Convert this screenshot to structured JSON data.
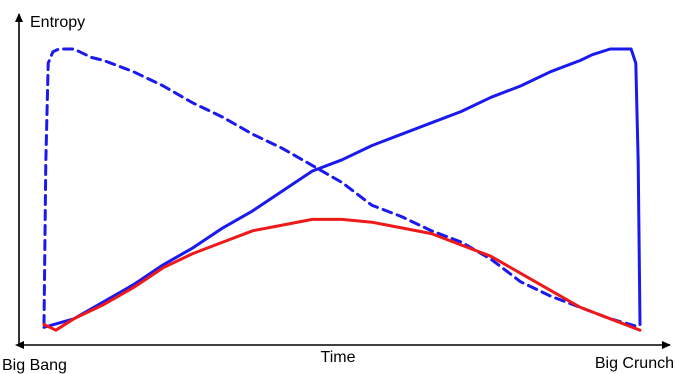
{
  "chart_data": {
    "type": "line",
    "ylabel": "Entropy",
    "xlabel": "Time",
    "x_start_label": "Big Bang",
    "x_end_label": "Big Crunch",
    "xlim": [
      0,
      1
    ],
    "ylim": [
      0,
      1
    ],
    "grid": false,
    "legend": "none",
    "x_ticks": false,
    "y_ticks": false,
    "series": [
      {
        "color": "#1a1aee",
        "style": "solid",
        "x": [
          0.0,
          0.05,
          0.1,
          0.15,
          0.2,
          0.25,
          0.3,
          0.35,
          0.4,
          0.45,
          0.5,
          0.55,
          0.6,
          0.65,
          0.7,
          0.75,
          0.8,
          0.85,
          0.9,
          0.92,
          0.95,
          0.97,
          0.985,
          0.993,
          0.997,
          1.0
        ],
        "y": [
          0.02,
          0.05,
          0.11,
          0.17,
          0.24,
          0.3,
          0.37,
          0.43,
          0.5,
          0.57,
          0.61,
          0.66,
          0.7,
          0.74,
          0.78,
          0.83,
          0.87,
          0.92,
          0.96,
          0.98,
          1.0,
          1.0,
          1.0,
          0.95,
          0.6,
          0.03
        ]
      },
      {
        "color": "#1a1aee",
        "style": "dashed",
        "x": [
          0.0,
          0.003,
          0.007,
          0.015,
          0.025,
          0.05,
          0.08,
          0.1,
          0.15,
          0.2,
          0.25,
          0.3,
          0.35,
          0.4,
          0.45,
          0.5,
          0.55,
          0.6,
          0.65,
          0.7,
          0.75,
          0.8,
          0.85,
          0.9,
          0.95,
          1.0
        ],
        "y": [
          0.03,
          0.6,
          0.95,
          0.99,
          1.0,
          1.0,
          0.97,
          0.96,
          0.92,
          0.87,
          0.81,
          0.76,
          0.7,
          0.65,
          0.59,
          0.53,
          0.45,
          0.41,
          0.36,
          0.32,
          0.26,
          0.18,
          0.13,
          0.09,
          0.05,
          0.02
        ]
      },
      {
        "color": "#ee1a1a",
        "style": "solid",
        "x": [
          0.0,
          0.02,
          0.05,
          0.1,
          0.15,
          0.2,
          0.25,
          0.3,
          0.35,
          0.4,
          0.45,
          0.5,
          0.55,
          0.6,
          0.65,
          0.7,
          0.75,
          0.8,
          0.85,
          0.9,
          0.95,
          1.0
        ],
        "y": [
          0.03,
          0.01,
          0.05,
          0.1,
          0.16,
          0.23,
          0.28,
          0.32,
          0.36,
          0.38,
          0.4,
          0.4,
          0.39,
          0.37,
          0.35,
          0.31,
          0.27,
          0.21,
          0.15,
          0.09,
          0.05,
          0.01
        ]
      }
    ]
  }
}
